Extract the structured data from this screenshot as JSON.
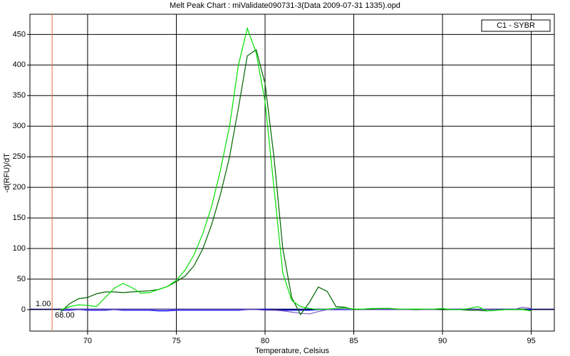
{
  "chart_data": {
    "type": "line",
    "title": "Melt Peak Chart : miValidate090731-3(Data 2009-07-31 1335).opd",
    "x_label": "Temperature, Celsius",
    "y_label": "-d(RFU)/dT",
    "legend_label": "C1 - SYBR",
    "xlim": [
      66.75,
      96.3
    ],
    "ylim": [
      -35,
      483
    ],
    "xticks": [
      70,
      75,
      80,
      85,
      90,
      95
    ],
    "yticks": [
      0,
      50,
      100,
      150,
      200,
      250,
      300,
      350,
      400,
      450
    ],
    "grid": true,
    "threshold": {
      "value": 1,
      "label": "1.00",
      "color": "#000080"
    },
    "start_marker": {
      "value": 68,
      "label": "68.00",
      "color": "#e07040"
    },
    "x": [
      68.5,
      69,
      69.5,
      70,
      70.5,
      71,
      71.5,
      72,
      72.5,
      73,
      73.5,
      74,
      74.5,
      75,
      75.5,
      76,
      76.5,
      77,
      77.5,
      78,
      78.5,
      79,
      79.5,
      80,
      80.5,
      81,
      81.5,
      82,
      82.5,
      83,
      83.5,
      84,
      84.5,
      85,
      85.5,
      86,
      86.5,
      87,
      87.5,
      88,
      88.5,
      89,
      89.5,
      90,
      90.5,
      91,
      91.5,
      92,
      92.5,
      93,
      93.5,
      94,
      94.5,
      95
    ],
    "series": [
      {
        "color": "#0000ff",
        "values": [
          -1,
          -1,
          0,
          -1,
          -1,
          -1,
          0,
          -1,
          -1,
          -1,
          -1,
          -2,
          -2,
          -1,
          -1,
          -1,
          -1,
          -1,
          -1,
          -1,
          -1,
          0,
          0,
          0,
          -1,
          -1,
          -1,
          -1,
          -1,
          0,
          0,
          0,
          0,
          0,
          0,
          0,
          0,
          0,
          0,
          0,
          0,
          0,
          0,
          0,
          0,
          0,
          0,
          0,
          0,
          0,
          0,
          0,
          0,
          0
        ]
      },
      {
        "color": "#8060c0",
        "values": [
          0,
          0,
          0,
          0,
          0,
          0,
          0,
          0,
          0,
          0,
          0,
          0,
          0,
          0,
          0,
          0,
          0,
          0,
          0,
          0,
          0,
          0,
          0,
          -1,
          -1,
          -2,
          -4,
          -6,
          -7,
          -3,
          0,
          1,
          1,
          0,
          0,
          0,
          0,
          0,
          0,
          0,
          0,
          0,
          0,
          0,
          0,
          0,
          0,
          0,
          0,
          0,
          0,
          0,
          4,
          2
        ]
      },
      {
        "color": "#006400",
        "values": [
          -3,
          10,
          18,
          20,
          26,
          29,
          29,
          28,
          29,
          30,
          31,
          33,
          38,
          46,
          55,
          72,
          100,
          140,
          190,
          250,
          330,
          415,
          425,
          370,
          250,
          100,
          20,
          -8,
          12,
          37,
          30,
          5,
          4,
          0,
          1,
          1,
          2,
          2,
          1,
          1,
          0,
          1,
          1,
          0,
          0,
          0,
          -1,
          -1,
          -2,
          -1,
          0,
          0,
          1,
          -2
        ]
      },
      {
        "color": "#00e000",
        "values": [
          0,
          5,
          8,
          7,
          5,
          20,
          35,
          43,
          36,
          27,
          28,
          33,
          38,
          48,
          65,
          90,
          125,
          170,
          230,
          300,
          400,
          460,
          420,
          340,
          200,
          60,
          15,
          5,
          2,
          0,
          1,
          2,
          3,
          1,
          1,
          2,
          2,
          2,
          1,
          1,
          1,
          1,
          1,
          2,
          0,
          0,
          2,
          5,
          -2,
          -1,
          0,
          0,
          0,
          -2
        ]
      }
    ]
  }
}
